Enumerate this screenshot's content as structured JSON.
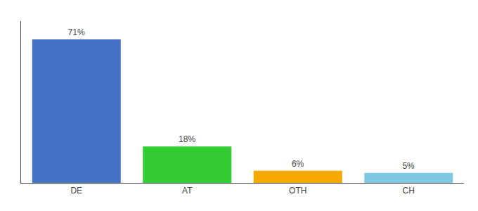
{
  "chart_data": {
    "type": "bar",
    "categories": [
      "DE",
      "AT",
      "OTH",
      "CH"
    ],
    "values": [
      71,
      18,
      6,
      5
    ],
    "value_labels": [
      "71%",
      "18%",
      "6%",
      "5%"
    ],
    "data_labels": true,
    "colors": [
      "#4472c4",
      "#33cc33",
      "#f5a800",
      "#7ec8e3"
    ],
    "ylim": [
      0,
      80
    ],
    "tick_labels": "x",
    "grid": false
  }
}
